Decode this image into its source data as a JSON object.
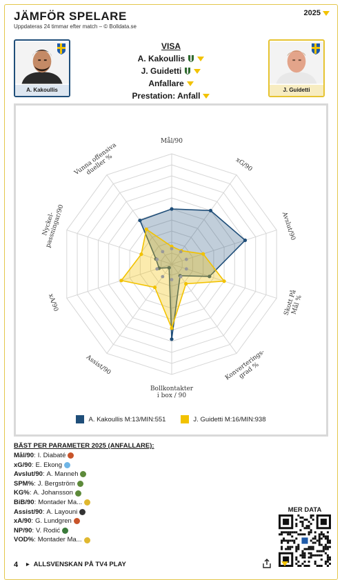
{
  "header": {
    "title": "JÄMFÖR SPELARE",
    "subtitle": "Uppdateras 24 timmar efter match – © Bolldata.se",
    "year": "2025"
  },
  "players": {
    "left": {
      "name": "A. Kakoullis",
      "color": "#1f4e79"
    },
    "right": {
      "name": "J. Guidetti",
      "color": "#f2c200"
    }
  },
  "visa": {
    "heading": "VISA",
    "player1": "A. Kakoullis",
    "player2": "J. Guidetti",
    "position": "Anfallare",
    "performance": "Prestation: Anfall"
  },
  "chart_data": {
    "type": "radar",
    "axes": [
      "Mål/90",
      "xG/90",
      "Avslut/90",
      "Skott På Mål %",
      "Konverterings-grad %",
      "Bollkontakter i box / 90",
      "Assist/90",
      "xA/90",
      "Nyckel-passningar/90",
      "Vunna offensiva dueller %"
    ],
    "axis_lines": [
      [
        "Mål/90"
      ],
      [
        "xG/90"
      ],
      [
        "Avslut/90"
      ],
      [
        "Skott På",
        "Mål %"
      ],
      [
        "Konverterings-",
        "grad %"
      ],
      [
        "Bollkontakter",
        "i box / 90"
      ],
      [
        "Assist/90"
      ],
      [
        "xA/90"
      ],
      [
        "Nyckel-",
        "passningar/90"
      ],
      [
        "Vunna offensiva",
        "dueller %"
      ]
    ],
    "range": [
      0,
      100
    ],
    "rings": 10,
    "series": [
      {
        "name": "A. Kakoullis M:13/MIN:551",
        "values": [
          50,
          60,
          70,
          36,
          13,
          68,
          4,
          12,
          15,
          49
        ]
      },
      {
        "name": "J. Guidetti M:16/MIN:938",
        "values": [
          16,
          15,
          30,
          50,
          22,
          58,
          26,
          48,
          29,
          39
        ]
      }
    ],
    "legend_position": "bottom",
    "grid": true
  },
  "best": {
    "heading": "BÄST PER PARAMETER 2025 (ANFALLARE):",
    "rows": [
      {
        "param": "Mål/90",
        "player": "I. Diabaté",
        "badge": "#c8542a"
      },
      {
        "param": "xG/90",
        "player": "E. Ekong",
        "badge": "#6fb5e6"
      },
      {
        "param": "Avslut/90",
        "player": "A. Manneh",
        "badge": "#5d8a3a"
      },
      {
        "param": "SPM%",
        "player": "J. Bergström",
        "badge": "#5d8a3a"
      },
      {
        "param": "KG%",
        "player": "A. Johansson",
        "badge": "#5d8a3a"
      },
      {
        "param": "BiB/90",
        "player": "Montader Ma...",
        "badge": "#e0b830"
      },
      {
        "param": "Assist/90",
        "player": "A. Layouni",
        "badge": "#333333"
      },
      {
        "param": "xA/90",
        "player": "G. Lundgren",
        "badge": "#c8542a"
      },
      {
        "param": "NP/90",
        "player": "V. Rodić",
        "badge": "#3a7a3a"
      },
      {
        "param": "VOD%",
        "player": "Montader Ma...",
        "badge": "#e0b830"
      }
    ]
  },
  "qr": {
    "label": "MER DATA"
  },
  "footer": {
    "label": "ALLSVENSKAN PÅ TV4 PLAY"
  }
}
